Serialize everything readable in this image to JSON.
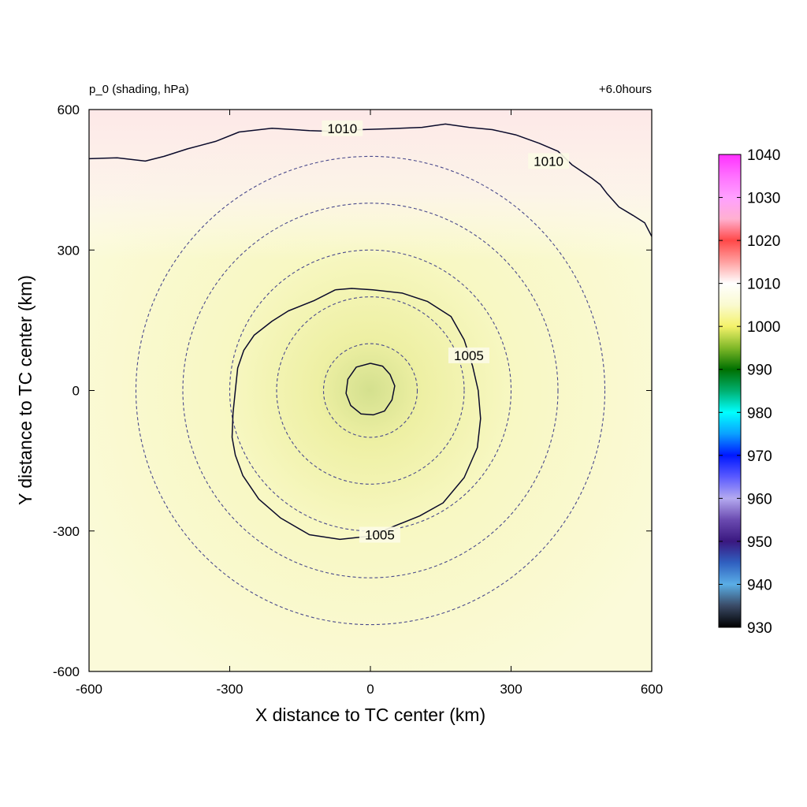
{
  "chart_data": {
    "type": "heatmap",
    "title_left": "p_0 (shading, hPa)",
    "title_right": "+6.0hours",
    "xlabel": "X distance to TC center (km)",
    "ylabel": "Y distance to TC center (km)",
    "xlim": [
      -600,
      600
    ],
    "ylim": [
      -600,
      600
    ],
    "xticks": [
      "-600",
      "-300",
      "0",
      "300",
      "600"
    ],
    "yticks": [
      "-600",
      "-300",
      "0",
      "300",
      "600"
    ],
    "grid": false,
    "colorbar": {
      "ticks": [
        "930",
        "940",
        "950",
        "960",
        "970",
        "980",
        "990",
        "1000",
        "1010",
        "1020",
        "1030",
        "1040"
      ],
      "min": 930,
      "max": 1040,
      "stops": [
        {
          "v": 930,
          "c": "#000000"
        },
        {
          "v": 935,
          "c": "#3a4a66"
        },
        {
          "v": 940,
          "c": "#5aaee6"
        },
        {
          "v": 945,
          "c": "#3060c0"
        },
        {
          "v": 950,
          "c": "#3a1880"
        },
        {
          "v": 955,
          "c": "#6a4ab0"
        },
        {
          "v": 960,
          "c": "#b4aaf0"
        },
        {
          "v": 965,
          "c": "#5a5aff"
        },
        {
          "v": 970,
          "c": "#0018ff"
        },
        {
          "v": 975,
          "c": "#0aa0ff"
        },
        {
          "v": 980,
          "c": "#00ffff"
        },
        {
          "v": 985,
          "c": "#00b070"
        },
        {
          "v": 990,
          "c": "#007000"
        },
        {
          "v": 995,
          "c": "#80b828"
        },
        {
          "v": 1000,
          "c": "#f4f26a"
        },
        {
          "v": 1005,
          "c": "#fafad0"
        },
        {
          "v": 1010,
          "c": "#ffffff"
        },
        {
          "v": 1015,
          "c": "#ffa0a0"
        },
        {
          "v": 1020,
          "c": "#ff4848"
        },
        {
          "v": 1025,
          "c": "#ffb0d0"
        },
        {
          "v": 1030,
          "c": "#ffa0ff"
        },
        {
          "v": 1035,
          "c": "#ff70ff"
        },
        {
          "v": 1040,
          "c": "#ff30ff"
        }
      ]
    },
    "shading_field": {
      "background_color": "#fbfad9",
      "center_km": [
        0,
        0
      ],
      "center_value": 998,
      "center_color": "#d4e08e",
      "north_edge_value": 1011,
      "north_color": "#fde8e8"
    },
    "dashed_circles": {
      "radii_km": [
        100,
        200,
        300,
        400,
        500
      ],
      "color": "#4a4a8c"
    },
    "contours": [
      {
        "level": 1010,
        "label": "1010",
        "label_positions_km": [
          [
            -60,
            560
          ],
          [
            380,
            490
          ]
        ],
        "points_km": [
          [
            -600,
            495
          ],
          [
            -540,
            497
          ],
          [
            -480,
            490
          ],
          [
            -440,
            500
          ],
          [
            -390,
            516
          ],
          [
            -330,
            532
          ],
          [
            -280,
            552
          ],
          [
            -210,
            560
          ],
          [
            -130,
            555
          ],
          [
            -70,
            553
          ],
          [
            -20,
            557
          ],
          [
            40,
            559
          ],
          [
            110,
            562
          ],
          [
            160,
            569
          ],
          [
            210,
            562
          ],
          [
            260,
            557
          ],
          [
            310,
            546
          ],
          [
            360,
            528
          ],
          [
            400,
            511
          ],
          [
            430,
            482
          ],
          [
            470,
            455
          ],
          [
            490,
            440
          ],
          [
            505,
            420
          ],
          [
            530,
            392
          ],
          [
            560,
            374
          ],
          [
            585,
            358
          ],
          [
            600,
            329
          ]
        ]
      },
      {
        "level": 1005,
        "label": "1005",
        "label_positions_km": [
          [
            210,
            75
          ],
          [
            20,
            -308
          ]
        ],
        "points_km": [
          [
            -75,
            215
          ],
          [
            -120,
            192
          ],
          [
            -175,
            170
          ],
          [
            -210,
            148
          ],
          [
            -248,
            118
          ],
          [
            -270,
            86
          ],
          [
            -283,
            48
          ],
          [
            -288,
            0
          ],
          [
            -293,
            -48
          ],
          [
            -295,
            -100
          ],
          [
            -288,
            -138
          ],
          [
            -272,
            -182
          ],
          [
            -238,
            -232
          ],
          [
            -192,
            -272
          ],
          [
            -130,
            -308
          ],
          [
            -65,
            -318
          ],
          [
            0,
            -311
          ],
          [
            50,
            -290
          ],
          [
            105,
            -268
          ],
          [
            155,
            -240
          ],
          [
            200,
            -186
          ],
          [
            228,
            -122
          ],
          [
            235,
            -60
          ],
          [
            230,
            0
          ],
          [
            218,
            52
          ],
          [
            200,
            108
          ],
          [
            172,
            158
          ],
          [
            122,
            190
          ],
          [
            68,
            208
          ],
          [
            5,
            215
          ],
          [
            -40,
            218
          ],
          [
            -75,
            215
          ]
        ]
      },
      {
        "level": 1000,
        "label": "",
        "label_positions_km": [],
        "points_km": [
          [
            0,
            58
          ],
          [
            26,
            52
          ],
          [
            42,
            34
          ],
          [
            52,
            10
          ],
          [
            46,
            -20
          ],
          [
            30,
            -44
          ],
          [
            6,
            -52
          ],
          [
            -20,
            -50
          ],
          [
            -42,
            -32
          ],
          [
            -52,
            -6
          ],
          [
            -48,
            24
          ],
          [
            -30,
            50
          ],
          [
            0,
            58
          ]
        ]
      }
    ]
  }
}
